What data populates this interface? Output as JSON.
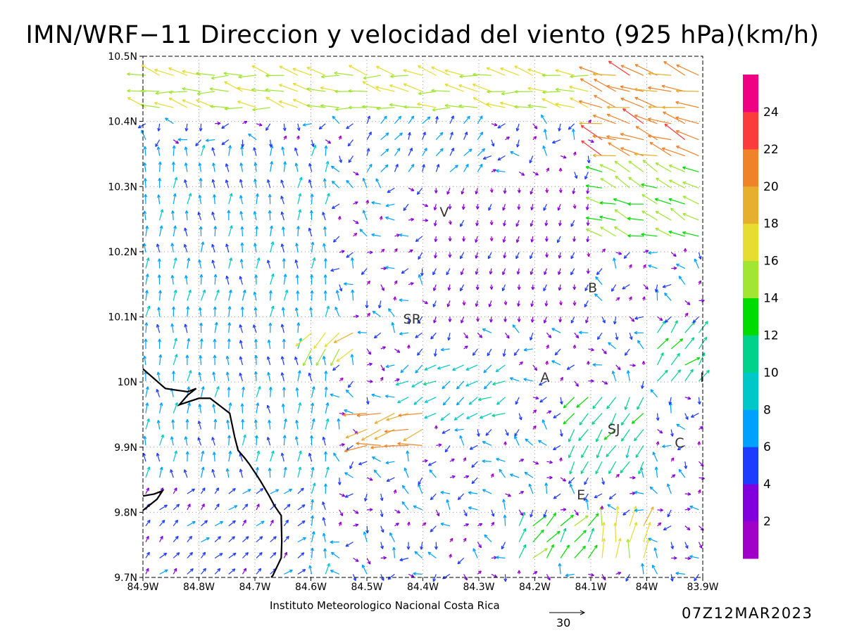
{
  "title": "IMN/WRF−11 Direccion y velocidad del viento (925 hPa)(km/h)",
  "credit": "Instituto Meteorologico Nacional Costa Rica",
  "timestamp": "07Z12MAR2023",
  "reference_arrow": {
    "label": "30",
    "speed": 30
  },
  "map": {
    "extent": {
      "lon": [
        -84.9,
        -83.9
      ],
      "lat": [
        9.7,
        10.5
      ]
    },
    "lon_ticks": [
      {
        "value": -84.9,
        "label": "84.9W"
      },
      {
        "value": -84.8,
        "label": "84.8W"
      },
      {
        "value": -84.7,
        "label": "84.7W"
      },
      {
        "value": -84.6,
        "label": "84.6W"
      },
      {
        "value": -84.5,
        "label": "84.5W"
      },
      {
        "value": -84.4,
        "label": "84.4W"
      },
      {
        "value": -84.3,
        "label": "84.3W"
      },
      {
        "value": -84.2,
        "label": "84.2W"
      },
      {
        "value": -84.1,
        "label": "84.1W"
      },
      {
        "value": -84.0,
        "label": "84W"
      },
      {
        "value": -83.9,
        "label": "83.9W"
      }
    ],
    "lat_ticks": [
      {
        "value": 9.7,
        "label": "9.7N"
      },
      {
        "value": 9.8,
        "label": "9.8N"
      },
      {
        "value": 9.9,
        "label": "9.9N"
      },
      {
        "value": 10.0,
        "label": "10N"
      },
      {
        "value": 10.1,
        "label": "10.1N"
      },
      {
        "value": 10.2,
        "label": "10.2N"
      },
      {
        "value": 10.3,
        "label": "10.3N"
      },
      {
        "value": 10.4,
        "label": "10.4N"
      },
      {
        "value": 10.5,
        "label": "10.5N"
      }
    ],
    "gridlines": "dotted",
    "places": [
      {
        "label": "V",
        "lon": -84.37,
        "lat": 10.254
      },
      {
        "label": "SR",
        "lon": -84.435,
        "lat": 10.09
      },
      {
        "label": "B",
        "lon": -84.105,
        "lat": 10.138
      },
      {
        "label": "A",
        "lon": -84.19,
        "lat": 10.0
      },
      {
        "label": "SJ",
        "lon": -84.07,
        "lat": 9.921
      },
      {
        "label": "C",
        "lon": -83.95,
        "lat": 9.9
      },
      {
        "label": "E",
        "lon": -84.125,
        "lat": 9.82
      },
      {
        "label": "I",
        "lon": -83.905,
        "lat": 10.0
      }
    ],
    "coastline": [
      [
        -84.9,
        10.02
      ],
      [
        -84.86,
        9.99
      ],
      [
        -84.82,
        9.985
      ],
      [
        -84.805,
        9.99
      ],
      [
        -84.82,
        9.98
      ],
      [
        -84.835,
        9.965
      ],
      [
        -84.8,
        9.975
      ],
      [
        -84.78,
        9.975
      ],
      [
        -84.745,
        9.952
      ],
      [
        -84.736,
        9.915
      ],
      [
        -84.73,
        9.895
      ],
      [
        -84.718,
        9.883
      ],
      [
        -84.71,
        9.874
      ],
      [
        -84.696,
        9.856
      ],
      [
        -84.69,
        9.848
      ],
      [
        -84.675,
        9.826
      ],
      [
        -84.665,
        9.81
      ],
      [
        -84.653,
        9.795
      ],
      [
        -84.652,
        9.755
      ],
      [
        -84.653,
        9.73
      ],
      [
        -84.668,
        9.703
      ],
      [
        -84.671,
        9.7
      ]
    ],
    "coastline_west": [
      [
        -84.9,
        9.825
      ],
      [
        -84.88,
        9.828
      ],
      [
        -84.865,
        9.833
      ],
      [
        -84.875,
        9.82
      ],
      [
        -84.9,
        9.803
      ]
    ]
  },
  "colorbar": {
    "colors": [
      "#a000c8",
      "#8200dc",
      "#1e3cff",
      "#00a0ff",
      "#00c8c8",
      "#00d28c",
      "#00dc00",
      "#a0e632",
      "#e6dc32",
      "#e6af2d",
      "#f08228",
      "#fa3c3c",
      "#f00082"
    ],
    "labels": [
      "2",
      "4",
      "6",
      "8",
      "10",
      "12",
      "14",
      "16",
      "18",
      "20",
      "22",
      "24"
    ]
  },
  "chart_data": {
    "type": "wind_vector_field",
    "title": "IMN/WRF−11 Direccion y velocidad del viento (925 hPa)(km/h)",
    "units": "km/h",
    "level": "925 hPa",
    "valid_time": "07Z12MAR2023",
    "grid": {
      "lon_start": -84.895,
      "lon_step": 0.0247,
      "ncols": 41,
      "lat_start": 9.705,
      "lat_step": 0.0247,
      "nrows": 32
    },
    "regions": [
      {
        "lon": [
          -84.9,
          -84.55
        ],
        "lat": [
          9.7,
          10.35
        ],
        "dir_deg": 0,
        "speed": 7
      },
      {
        "lon": [
          -84.9,
          -84.6
        ],
        "lat": [
          9.7,
          9.85
        ],
        "dir_deg": 45,
        "speed": 5
      },
      {
        "lon": [
          -84.5,
          -84.3
        ],
        "lat": [
          10.3,
          10.42
        ],
        "dir_deg": 30,
        "speed": 6
      },
      {
        "lon": [
          -84.4,
          -84.1
        ],
        "lat": [
          10.1,
          10.3
        ],
        "dir_deg": 190,
        "speed": 3
      },
      {
        "lon": [
          -84.45,
          -84.25
        ],
        "lat": [
          9.95,
          10.05
        ],
        "dir_deg": 240,
        "speed": 9
      },
      {
        "lon": [
          -84.52,
          -84.38
        ],
        "lat": [
          9.88,
          9.96
        ],
        "dir_deg": 255,
        "speed": 20
      },
      {
        "lon": [
          -84.6,
          -84.5
        ],
        "lat": [
          10.05,
          10.1
        ],
        "dir_deg": 225,
        "speed": 17
      },
      {
        "lon": [
          -84.15,
          -84.0
        ],
        "lat": [
          9.86,
          9.98
        ],
        "dir_deg": 210,
        "speed": 11
      },
      {
        "lon": [
          -84.1,
          -84.0
        ],
        "lat": [
          9.72,
          9.78
        ],
        "dir_deg": 10,
        "speed": 17
      },
      {
        "lon": [
          -84.25,
          -84.1
        ],
        "lat": [
          9.72,
          9.78
        ],
        "dir_deg": 40,
        "speed": 13
      },
      {
        "lon": [
          -84.0,
          -83.9
        ],
        "lat": [
          10.0,
          10.1
        ],
        "dir_deg": 45,
        "speed": 12
      },
      {
        "lon": [
          -84.1,
          -83.9
        ],
        "lat": [
          10.22,
          10.33
        ],
        "dir_deg": 290,
        "speed": 14
      },
      {
        "lon": [
          -84.9,
          -83.9
        ],
        "lat": [
          10.42,
          10.5
        ],
        "dir_deg": 280,
        "speed": 16
      },
      {
        "lon": [
          -84.1,
          -83.9
        ],
        "lat": [
          10.33,
          10.5
        ],
        "dir_deg": 290,
        "speed": 21
      }
    ]
  }
}
